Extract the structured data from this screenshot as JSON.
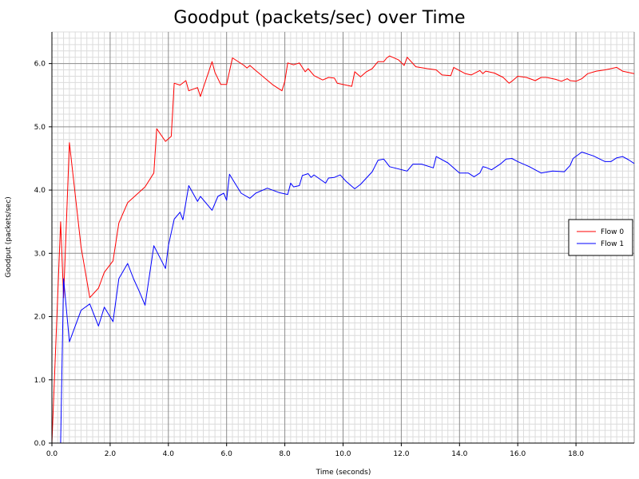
{
  "chart_data": {
    "type": "line",
    "title": "Goodput (packets/sec) over Time",
    "xlabel": "Time (seconds)",
    "ylabel": "Goodput (packets/sec)",
    "xlim": [
      0,
      20
    ],
    "ylim": [
      0,
      6.5
    ],
    "x_ticks": [
      0,
      2,
      4,
      6,
      8,
      10,
      12,
      14,
      16,
      18
    ],
    "x_tick_labels": [
      "0.0",
      "2.0",
      "4.0",
      "6.0",
      "8.0",
      "10.0",
      "12.0",
      "14.0",
      "16.0",
      "18.0"
    ],
    "y_ticks": [
      0,
      1,
      2,
      3,
      4,
      5,
      6
    ],
    "y_tick_labels": [
      "0.0",
      "1.0",
      "2.0",
      "3.0",
      "4.0",
      "5.0",
      "6.0"
    ],
    "grid": true,
    "legend_position": "right",
    "series": [
      {
        "name": "Flow 0",
        "color": "#ff0000",
        "points": [
          [
            0.0,
            0.0
          ],
          [
            0.3,
            3.5
          ],
          [
            0.4,
            2.3
          ],
          [
            0.6,
            4.75
          ],
          [
            1.0,
            3.1
          ],
          [
            1.3,
            2.3
          ],
          [
            1.6,
            2.45
          ],
          [
            1.8,
            2.7
          ],
          [
            2.1,
            2.88
          ],
          [
            2.3,
            3.48
          ],
          [
            2.6,
            3.8
          ],
          [
            3.2,
            4.05
          ],
          [
            3.5,
            4.27
          ],
          [
            3.6,
            4.97
          ],
          [
            3.9,
            4.77
          ],
          [
            4.1,
            4.85
          ],
          [
            4.2,
            5.69
          ],
          [
            4.4,
            5.66
          ],
          [
            4.6,
            5.73
          ],
          [
            4.7,
            5.57
          ],
          [
            5.0,
            5.62
          ],
          [
            5.1,
            5.48
          ],
          [
            5.5,
            6.03
          ],
          [
            5.6,
            5.86
          ],
          [
            5.8,
            5.67
          ],
          [
            6.0,
            5.67
          ],
          [
            6.2,
            6.09
          ],
          [
            6.6,
            5.97
          ],
          [
            6.7,
            5.93
          ],
          [
            6.8,
            5.97
          ],
          [
            7.0,
            5.89
          ],
          [
            7.6,
            5.66
          ],
          [
            7.9,
            5.57
          ],
          [
            8.0,
            5.72
          ],
          [
            8.1,
            6.01
          ],
          [
            8.3,
            5.98
          ],
          [
            8.5,
            6.01
          ],
          [
            8.7,
            5.87
          ],
          [
            8.8,
            5.92
          ],
          [
            9.0,
            5.81
          ],
          [
            9.3,
            5.74
          ],
          [
            9.5,
            5.78
          ],
          [
            9.7,
            5.77
          ],
          [
            9.8,
            5.69
          ],
          [
            10.3,
            5.64
          ],
          [
            10.4,
            5.87
          ],
          [
            10.6,
            5.79
          ],
          [
            10.8,
            5.87
          ],
          [
            11.0,
            5.92
          ],
          [
            11.2,
            6.03
          ],
          [
            11.4,
            6.03
          ],
          [
            11.5,
            6.09
          ],
          [
            11.6,
            6.12
          ],
          [
            11.9,
            6.06
          ],
          [
            12.1,
            5.97
          ],
          [
            12.2,
            6.1
          ],
          [
            12.5,
            5.95
          ],
          [
            12.9,
            5.92
          ],
          [
            13.2,
            5.9
          ],
          [
            13.4,
            5.82
          ],
          [
            13.7,
            5.81
          ],
          [
            13.8,
            5.94
          ],
          [
            14.2,
            5.84
          ],
          [
            14.4,
            5.82
          ],
          [
            14.7,
            5.89
          ],
          [
            14.8,
            5.84
          ],
          [
            14.9,
            5.88
          ],
          [
            15.2,
            5.85
          ],
          [
            15.5,
            5.78
          ],
          [
            15.7,
            5.69
          ],
          [
            15.8,
            5.72
          ],
          [
            16.0,
            5.8
          ],
          [
            16.3,
            5.78
          ],
          [
            16.6,
            5.73
          ],
          [
            16.8,
            5.78
          ],
          [
            17.0,
            5.78
          ],
          [
            17.3,
            5.75
          ],
          [
            17.5,
            5.72
          ],
          [
            17.7,
            5.76
          ],
          [
            17.8,
            5.73
          ],
          [
            18.0,
            5.72
          ],
          [
            18.2,
            5.76
          ],
          [
            18.4,
            5.84
          ],
          [
            18.7,
            5.88
          ],
          [
            19.0,
            5.9
          ],
          [
            19.2,
            5.92
          ],
          [
            19.4,
            5.94
          ],
          [
            19.6,
            5.88
          ],
          [
            19.9,
            5.85
          ],
          [
            20.0,
            5.84
          ]
        ]
      },
      {
        "name": "Flow 1",
        "color": "#0000ff",
        "points": [
          [
            0.0,
            0.0
          ],
          [
            0.3,
            0.0
          ],
          [
            0.4,
            2.6
          ],
          [
            0.6,
            1.6
          ],
          [
            1.0,
            2.1
          ],
          [
            1.3,
            2.2
          ],
          [
            1.6,
            1.85
          ],
          [
            1.8,
            2.15
          ],
          [
            2.1,
            1.92
          ],
          [
            2.3,
            2.6
          ],
          [
            2.6,
            2.84
          ],
          [
            2.8,
            2.6
          ],
          [
            3.0,
            2.4
          ],
          [
            3.2,
            2.18
          ],
          [
            3.5,
            3.12
          ],
          [
            3.9,
            2.76
          ],
          [
            4.0,
            3.12
          ],
          [
            4.2,
            3.54
          ],
          [
            4.4,
            3.65
          ],
          [
            4.5,
            3.53
          ],
          [
            4.7,
            4.07
          ],
          [
            5.0,
            3.82
          ],
          [
            5.1,
            3.9
          ],
          [
            5.5,
            3.68
          ],
          [
            5.7,
            3.9
          ],
          [
            5.9,
            3.95
          ],
          [
            6.0,
            3.84
          ],
          [
            6.1,
            4.25
          ],
          [
            6.3,
            4.1
          ],
          [
            6.5,
            3.95
          ],
          [
            6.8,
            3.87
          ],
          [
            7.0,
            3.95
          ],
          [
            7.4,
            4.03
          ],
          [
            7.8,
            3.96
          ],
          [
            8.1,
            3.93
          ],
          [
            8.2,
            4.11
          ],
          [
            8.3,
            4.05
          ],
          [
            8.5,
            4.07
          ],
          [
            8.6,
            4.23
          ],
          [
            8.8,
            4.26
          ],
          [
            8.9,
            4.2
          ],
          [
            9.0,
            4.24
          ],
          [
            9.4,
            4.11
          ],
          [
            9.5,
            4.19
          ],
          [
            9.7,
            4.2
          ],
          [
            9.9,
            4.24
          ],
          [
            10.1,
            4.14
          ],
          [
            10.4,
            4.02
          ],
          [
            10.6,
            4.09
          ],
          [
            11.0,
            4.29
          ],
          [
            11.2,
            4.47
          ],
          [
            11.4,
            4.49
          ],
          [
            11.6,
            4.37
          ],
          [
            12.2,
            4.3
          ],
          [
            12.4,
            4.41
          ],
          [
            12.7,
            4.41
          ],
          [
            13.1,
            4.35
          ],
          [
            13.2,
            4.53
          ],
          [
            13.6,
            4.43
          ],
          [
            14.0,
            4.27
          ],
          [
            14.3,
            4.27
          ],
          [
            14.5,
            4.21
          ],
          [
            14.7,
            4.27
          ],
          [
            14.8,
            4.37
          ],
          [
            14.9,
            4.36
          ],
          [
            15.1,
            4.32
          ],
          [
            15.4,
            4.41
          ],
          [
            15.6,
            4.49
          ],
          [
            15.8,
            4.5
          ],
          [
            16.0,
            4.45
          ],
          [
            16.4,
            4.37
          ],
          [
            16.8,
            4.27
          ],
          [
            17.2,
            4.3
          ],
          [
            17.6,
            4.29
          ],
          [
            17.8,
            4.39
          ],
          [
            17.9,
            4.5
          ],
          [
            18.2,
            4.6
          ],
          [
            18.6,
            4.54
          ],
          [
            19.0,
            4.45
          ],
          [
            19.2,
            4.45
          ],
          [
            19.4,
            4.51
          ],
          [
            19.6,
            4.53
          ],
          [
            19.8,
            4.48
          ],
          [
            20.0,
            4.42
          ]
        ]
      }
    ]
  }
}
